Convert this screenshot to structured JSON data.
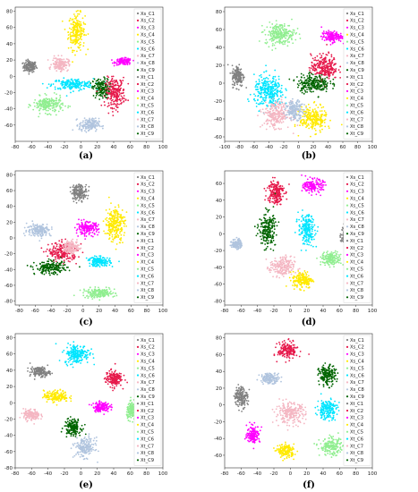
{
  "colors": {
    "C1": "#808080",
    "C2": "#e6194b",
    "C3": "#ff00ff",
    "C4": "#ffea00",
    "C5": "#90ee90",
    "C6": "#00e5ff",
    "C7": "#f4b6c2",
    "C8": "#b0c4de",
    "C9": "#006400"
  },
  "chart_data": [
    {
      "type": "scatter",
      "label": "(a)",
      "xlim": [
        -80,
        100
      ],
      "ylim": [
        -80,
        85
      ],
      "xticks": [
        -80,
        -60,
        -40,
        -20,
        0,
        20,
        40,
        60,
        80,
        100
      ],
      "yticks": [
        -60,
        -40,
        -20,
        0,
        20,
        40,
        60,
        80
      ],
      "legend": [
        "Xs_C1",
        "Xs_C2",
        "Xs_C3",
        "Xs_C4",
        "Xs_C5",
        "Xs_C6",
        "Xs_C7",
        "Xs_C8",
        "Xs_C9",
        "Xt_C1",
        "Xt_C2",
        "Xt_C3",
        "Xt_C4",
        "Xt_C5",
        "Xt_C6",
        "Xt_C7",
        "Xt_C8",
        "Xt_C9"
      ],
      "clusters": [
        {
          "class": "C1",
          "cx": -62,
          "cy": 12,
          "rx": 8,
          "ry": 7
        },
        {
          "class": "C4",
          "cx": -5,
          "cy": 55,
          "rx": 10,
          "ry": 22
        },
        {
          "class": "C3",
          "cx": 52,
          "cy": 18,
          "rx": 10,
          "ry": 4
        },
        {
          "class": "C6",
          "cx": -10,
          "cy": -10,
          "rx": 25,
          "ry": 7
        },
        {
          "class": "C9",
          "cx": 25,
          "cy": -15,
          "rx": 10,
          "ry": 12
        },
        {
          "class": "C2",
          "cx": 42,
          "cy": -20,
          "rx": 12,
          "ry": 18
        },
        {
          "class": "C5",
          "cx": -40,
          "cy": -35,
          "rx": 18,
          "ry": 10
        },
        {
          "class": "C7",
          "cx": -25,
          "cy": 15,
          "rx": 10,
          "ry": 8
        },
        {
          "class": "C8",
          "cx": 10,
          "cy": -60,
          "rx": 12,
          "ry": 8
        }
      ]
    },
    {
      "type": "scatter",
      "label": "(b)",
      "xlim": [
        -100,
        100
      ],
      "ylim": [
        -65,
        85
      ],
      "xticks": [
        -100,
        -80,
        -60,
        -40,
        -20,
        0,
        20,
        40,
        60,
        80,
        100
      ],
      "yticks": [
        -60,
        -40,
        -20,
        0,
        20,
        40,
        60,
        80
      ],
      "legend": [
        "Xs_C1",
        "Xs_C2",
        "Xs_C3",
        "Xs_C4",
        "Xs_C5",
        "Xs_C6",
        "Xs_C7",
        "Xs_C8",
        "Xs_C9",
        "Xt_C1",
        "Xt_C2",
        "Xt_C3",
        "Xt_C4",
        "Xt_C5",
        "Xt_C6",
        "Xt_C7",
        "Xt_C8",
        "Xt_C9"
      ],
      "clusters": [
        {
          "class": "C1",
          "cx": -82,
          "cy": 8,
          "rx": 8,
          "ry": 12
        },
        {
          "class": "C5",
          "cx": -25,
          "cy": 55,
          "rx": 20,
          "ry": 12
        },
        {
          "class": "C3",
          "cx": 45,
          "cy": 52,
          "rx": 14,
          "ry": 6
        },
        {
          "class": "C2",
          "cx": 35,
          "cy": 18,
          "rx": 18,
          "ry": 14
        },
        {
          "class": "C9",
          "cx": 20,
          "cy": 0,
          "rx": 22,
          "ry": 10
        },
        {
          "class": "C6",
          "cx": -40,
          "cy": -10,
          "rx": 20,
          "ry": 18
        },
        {
          "class": "C7",
          "cx": -30,
          "cy": -35,
          "rx": 18,
          "ry": 14
        },
        {
          "class": "C4",
          "cx": 20,
          "cy": -40,
          "rx": 18,
          "ry": 14
        },
        {
          "class": "C8",
          "cx": -5,
          "cy": -30,
          "rx": 12,
          "ry": 10
        }
      ]
    },
    {
      "type": "scatter",
      "label": "(c)",
      "xlim": [
        -85,
        100
      ],
      "ylim": [
        -85,
        85
      ],
      "xticks": [
        -80,
        -60,
        -40,
        -20,
        0,
        20,
        40,
        60,
        80,
        100
      ],
      "yticks": [
        -80,
        -60,
        -40,
        -20,
        0,
        20,
        40,
        60,
        80
      ],
      "legend": [
        "Xs_C1",
        "Xs_C2",
        "Xs_C3",
        "Xs_C4",
        "Xs_C5",
        "Xs_C6",
        "Xs_C7",
        "Xs_C8",
        "Xs_C9",
        "Xt_C1",
        "Xt_C2",
        "Xt_C3",
        "Xt_C4",
        "Xt_C5",
        "Xt_C6",
        "Xt_C7",
        "Xt_C8",
        "Xt_C9"
      ],
      "clusters": [
        {
          "class": "C1",
          "cx": -5,
          "cy": 58,
          "rx": 10,
          "ry": 10
        },
        {
          "class": "C4",
          "cx": 40,
          "cy": 18,
          "rx": 12,
          "ry": 22
        },
        {
          "class": "C3",
          "cx": 5,
          "cy": 12,
          "rx": 14,
          "ry": 8
        },
        {
          "class": "C8",
          "cx": -55,
          "cy": 10,
          "rx": 15,
          "ry": 8
        },
        {
          "class": "C2",
          "cx": -25,
          "cy": -18,
          "rx": 18,
          "ry": 12
        },
        {
          "class": "C9",
          "cx": -40,
          "cy": -38,
          "rx": 20,
          "ry": 8
        },
        {
          "class": "C6",
          "cx": 20,
          "cy": -30,
          "rx": 14,
          "ry": 6
        },
        {
          "class": "C7",
          "cx": -15,
          "cy": -12,
          "rx": 10,
          "ry": 8
        },
        {
          "class": "C5",
          "cx": 20,
          "cy": -70,
          "rx": 20,
          "ry": 6
        }
      ]
    },
    {
      "type": "scatter",
      "label": "(d)",
      "xlim": [
        -80,
        100
      ],
      "ylim": [
        -85,
        75
      ],
      "xticks": [
        -80,
        -60,
        -40,
        -20,
        0,
        20,
        40,
        60,
        80,
        100
      ],
      "yticks": [
        -80,
        -60,
        -40,
        -20,
        0,
        20,
        40,
        60
      ],
      "legend": [
        "Xs_C1",
        "Xs_C2",
        "Xs_C3",
        "Xs_C4",
        "Xs_C5",
        "Xs_C6",
        "Xs_C7",
        "Xs_C8",
        "Xs_C9",
        "Xt_C1",
        "Xt_C2",
        "Xt_C3",
        "Xt_C4",
        "Xt_C5",
        "Xt_C6",
        "Xt_C7",
        "Xt_C8",
        "Xt_C9"
      ],
      "clusters": [
        {
          "class": "C2",
          "cx": -18,
          "cy": 50,
          "rx": 10,
          "ry": 15
        },
        {
          "class": "C3",
          "cx": 28,
          "cy": 57,
          "rx": 12,
          "ry": 8
        },
        {
          "class": "C9",
          "cx": -28,
          "cy": 5,
          "rx": 10,
          "ry": 20
        },
        {
          "class": "C6",
          "cx": 20,
          "cy": 5,
          "rx": 10,
          "ry": 18
        },
        {
          "class": "C1",
          "cx": 70,
          "cy": -2,
          "rx": 8,
          "ry": 12
        },
        {
          "class": "C8",
          "cx": -65,
          "cy": -12,
          "rx": 6,
          "ry": 6
        },
        {
          "class": "C5",
          "cx": 50,
          "cy": -30,
          "rx": 12,
          "ry": 8
        },
        {
          "class": "C7",
          "cx": -10,
          "cy": -40,
          "rx": 15,
          "ry": 12
        },
        {
          "class": "C4",
          "cx": 15,
          "cy": -55,
          "rx": 12,
          "ry": 10
        }
      ]
    },
    {
      "type": "scatter",
      "label": "(e)",
      "xlim": [
        -80,
        100
      ],
      "ylim": [
        -80,
        85
      ],
      "xticks": [
        -80,
        -60,
        -40,
        -20,
        0,
        20,
        40,
        60,
        80,
        100
      ],
      "yticks": [
        -80,
        -60,
        -40,
        -20,
        0,
        20,
        40,
        60,
        80
      ],
      "legend": [
        "Xs_C1",
        "Xs_C2",
        "Xs_C3",
        "Xs_C4",
        "Xs_C5",
        "Xs_C6",
        "Xs_C7",
        "Xs_C8",
        "Xs_C9",
        "Xt_C1",
        "Xt_C2",
        "Xt_C3",
        "Xt_C4",
        "Xt_C5",
        "Xt_C6",
        "Xt_C7",
        "Xt_C8",
        "Xt_C9"
      ],
      "clusters": [
        {
          "class": "C6",
          "cx": -5,
          "cy": 60,
          "rx": 15,
          "ry": 12
        },
        {
          "class": "C1",
          "cx": -50,
          "cy": 38,
          "rx": 12,
          "ry": 6
        },
        {
          "class": "C2",
          "cx": 40,
          "cy": 30,
          "rx": 10,
          "ry": 10
        },
        {
          "class": "C4",
          "cx": -30,
          "cy": 8,
          "rx": 15,
          "ry": 7
        },
        {
          "class": "C3",
          "cx": 25,
          "cy": -5,
          "rx": 10,
          "ry": 6
        },
        {
          "class": "C7",
          "cx": -60,
          "cy": -15,
          "rx": 10,
          "ry": 7
        },
        {
          "class": "C5",
          "cx": 62,
          "cy": -10,
          "rx": 6,
          "ry": 10
        },
        {
          "class": "C9",
          "cx": -10,
          "cy": -30,
          "rx": 10,
          "ry": 10
        },
        {
          "class": "C8",
          "cx": 5,
          "cy": -55,
          "rx": 12,
          "ry": 12
        }
      ]
    },
    {
      "type": "scatter",
      "label": "(f)",
      "xlim": [
        -80,
        100
      ],
      "ylim": [
        -75,
        85
      ],
      "xticks": [
        -80,
        -60,
        -40,
        -20,
        0,
        20,
        40,
        60,
        80,
        100
      ],
      "yticks": [
        -60,
        -40,
        -20,
        0,
        20,
        40,
        60,
        80
      ],
      "legend": [
        "Xs_C1",
        "Xs_C2",
        "Xs_C3",
        "Xs_C4",
        "Xs_C5",
        "Xs_C6",
        "Xs_C7",
        "Xs_C8",
        "Xs_C9",
        "Xt_C1",
        "Xt_C2",
        "Xt_C3",
        "Xt_C4",
        "Xt_C5",
        "Xt_C6",
        "Xt_C7",
        "Xt_C8",
        "Xt_C9"
      ],
      "clusters": [
        {
          "class": "C2",
          "cx": -3,
          "cy": 65,
          "rx": 12,
          "ry": 10
        },
        {
          "class": "C9",
          "cx": 45,
          "cy": 35,
          "rx": 10,
          "ry": 12
        },
        {
          "class": "C8",
          "cx": -25,
          "cy": 32,
          "rx": 12,
          "ry": 6
        },
        {
          "class": "C1",
          "cx": -60,
          "cy": 10,
          "rx": 8,
          "ry": 12
        },
        {
          "class": "C6",
          "cx": 45,
          "cy": -5,
          "rx": 12,
          "ry": 12
        },
        {
          "class": "C7",
          "cx": 0,
          "cy": -10,
          "rx": 18,
          "ry": 12
        },
        {
          "class": "C3",
          "cx": -45,
          "cy": -35,
          "rx": 8,
          "ry": 10
        },
        {
          "class": "C4",
          "cx": -5,
          "cy": -55,
          "rx": 10,
          "ry": 8
        },
        {
          "class": "C5",
          "cx": 50,
          "cy": -50,
          "rx": 14,
          "ry": 10
        }
      ]
    }
  ]
}
